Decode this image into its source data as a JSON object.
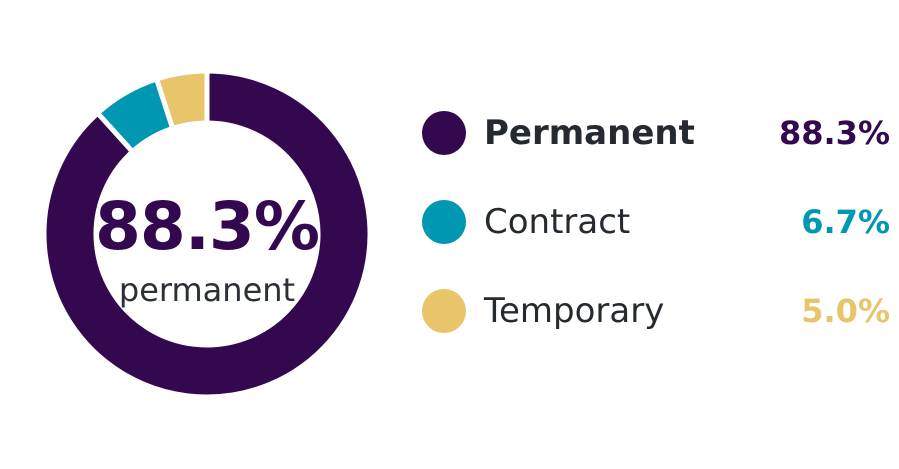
{
  "chart_data": {
    "type": "pie",
    "style": "donut",
    "categories": [
      "Permanent",
      "Contract",
      "Temporary"
    ],
    "values": [
      88.3,
      6.7,
      5.0
    ],
    "value_labels": [
      "88.3%",
      "6.7%",
      "5.0%"
    ],
    "colors": [
      "#33084f",
      "#0097b2",
      "#e8c46b"
    ],
    "center_value": "88.3%",
    "center_label": "permanent",
    "legend_placement": "right"
  }
}
